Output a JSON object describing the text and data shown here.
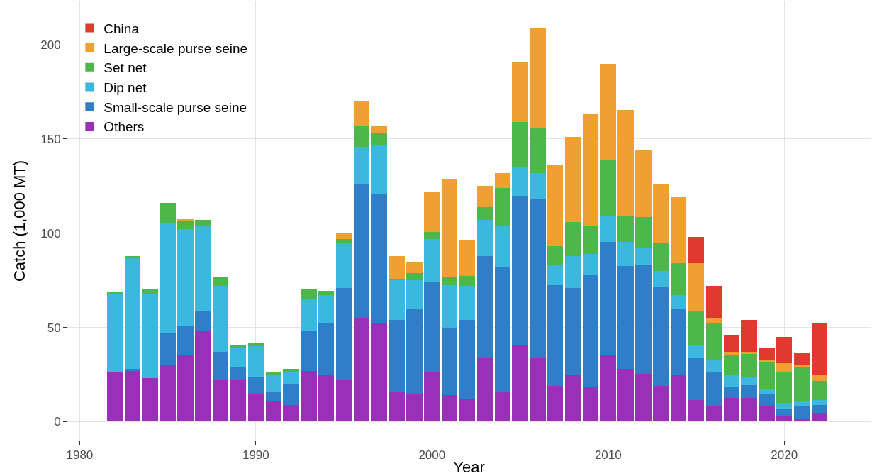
{
  "chart_data": {
    "type": "bar",
    "stacked": true,
    "xlabel": "Year",
    "ylabel": "Catch (1,000 MT)",
    "x": [
      1982,
      1983,
      1984,
      1985,
      1986,
      1987,
      1988,
      1989,
      1990,
      1991,
      1992,
      1993,
      1994,
      1995,
      1996,
      1997,
      1998,
      1999,
      2000,
      2001,
      2002,
      2003,
      2004,
      2005,
      2006,
      2007,
      2008,
      2009,
      2010,
      2011,
      2012,
      2013,
      2014,
      2015,
      2016,
      2017,
      2018,
      2019,
      2020,
      2021,
      2022
    ],
    "series": [
      {
        "name": "Others",
        "color": "#9a30b8",
        "values": [
          26,
          27,
          23,
          30,
          35,
          48,
          22,
          22,
          15,
          11,
          9,
          27,
          25,
          22,
          55,
          52,
          16,
          15,
          26,
          14,
          12,
          34,
          16,
          41,
          34,
          19,
          25,
          18.5,
          35.5,
          28,
          25.5,
          19,
          25,
          11.5,
          8,
          12.5,
          12.5,
          8.5,
          3,
          1.5,
          4.5
        ]
      },
      {
        "name": "Small-scale purse seine",
        "color": "#2f7fc8",
        "values": [
          0,
          1,
          0,
          17,
          16,
          11,
          15,
          7,
          9,
          5,
          11,
          21,
          27,
          49,
          71,
          68.5,
          38,
          45,
          48,
          36,
          42,
          54,
          66,
          79,
          84.5,
          53.5,
          46,
          59.5,
          60,
          54.5,
          58,
          52.5,
          35,
          22,
          18,
          6,
          7,
          6.5,
          4,
          6.5,
          4.5
        ]
      },
      {
        "name": "Dip net",
        "color": "#3ab8e0",
        "values": [
          42,
          59,
          45,
          58,
          51,
          45,
          35,
          10,
          16,
          9,
          6,
          17,
          15,
          24,
          20,
          26.5,
          21,
          15,
          23,
          22.5,
          18,
          19,
          22,
          15,
          13.5,
          10.5,
          17,
          11,
          13.5,
          13,
          9,
          8.5,
          7,
          7,
          7,
          6.5,
          4.5,
          2,
          3,
          3,
          2.5
        ]
      },
      {
        "name": "Set net",
        "color": "#4cb84c",
        "values": [
          1,
          1,
          2,
          11,
          5,
          3,
          5,
          2,
          2,
          1,
          2,
          5,
          2.5,
          2,
          11,
          6,
          1,
          4,
          3.5,
          4,
          5.5,
          7,
          20,
          24,
          24,
          10,
          18,
          15,
          30,
          13.5,
          16,
          14.5,
          17,
          18.5,
          19,
          10,
          12,
          15,
          16,
          18,
          10
        ]
      },
      {
        "name": "Large-scale purse seine",
        "color": "#f0a030",
        "values": [
          0,
          0,
          0,
          0,
          0.5,
          0,
          0,
          0,
          0,
          0,
          0,
          0,
          0,
          3,
          13,
          4,
          12,
          6,
          21.5,
          52.5,
          19,
          11,
          8,
          31.5,
          53,
          43,
          45,
          59.5,
          51,
          56.5,
          35.5,
          31.5,
          35,
          25,
          3,
          2,
          1,
          0.5,
          5,
          1,
          3
        ]
      },
      {
        "name": "China",
        "color": "#e03a2f",
        "values": [
          0,
          0,
          0,
          0,
          0,
          0,
          0,
          0,
          0,
          0,
          0,
          0,
          0,
          0,
          0,
          0,
          0,
          0,
          0,
          0,
          0,
          0,
          0,
          0,
          0,
          0,
          0,
          0,
          0,
          0,
          0,
          0,
          0,
          14,
          17,
          9,
          17,
          6.5,
          14,
          6.5,
          27.5
        ]
      }
    ],
    "xlim": [
      1979.3,
      2024.9
    ],
    "xticks": [
      1980,
      1990,
      2000,
      2010,
      2020
    ],
    "ylim": [
      -10,
      223
    ],
    "yticks": [
      0,
      50,
      100,
      150,
      200
    ],
    "grid": true,
    "legend": "top left"
  }
}
